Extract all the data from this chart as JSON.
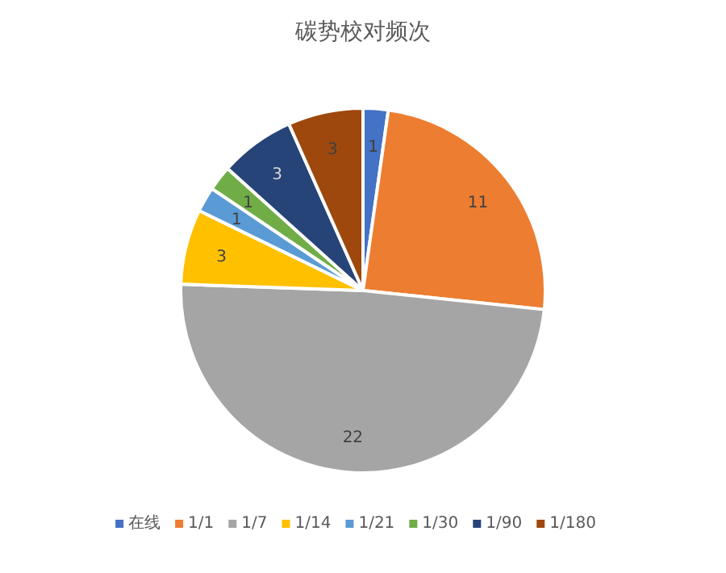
{
  "chart_data": {
    "type": "pie",
    "title": "碳势校对频次",
    "categories": [
      "在线",
      "1/1",
      "1/7",
      "1/14",
      "1/21",
      "1/30",
      "1/90",
      "1/180"
    ],
    "values": [
      1,
      11,
      22,
      3,
      1,
      1,
      3,
      3
    ],
    "colors": [
      "#4472c4",
      "#ed7d31",
      "#a5a5a5",
      "#ffc000",
      "#5b9bd5",
      "#70ad47",
      "#264478",
      "#9e480e"
    ],
    "data_labels": true,
    "legend": "bottom"
  }
}
